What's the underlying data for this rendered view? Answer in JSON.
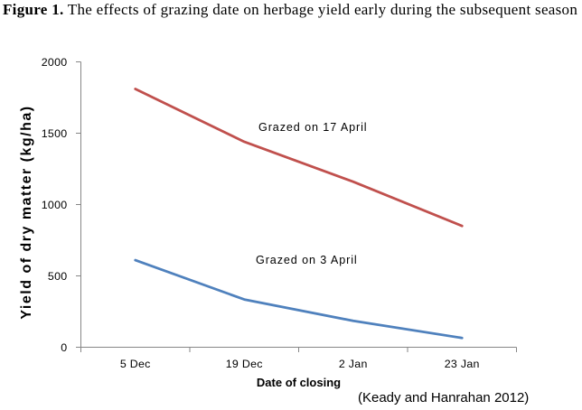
{
  "figure": {
    "label": "Figure 1.",
    "title": "The effects of grazing date on herbage yield early during the subsequent season",
    "citation": "(Keady and Hanrahan 2012)"
  },
  "chart_data": {
    "type": "line",
    "title": "The effects of grazing date on herbage yield early during the subsequent season",
    "categories": [
      "5 Dec",
      "19 Dec",
      "2 Jan",
      "23 Jan"
    ],
    "series": [
      {
        "name": "Grazed on 17 April",
        "values": [
          1810,
          1440,
          1160,
          850
        ],
        "color": "#C0504D"
      },
      {
        "name": "Grazed on 3 April",
        "values": [
          610,
          335,
          185,
          65
        ],
        "color": "#4F81BD"
      }
    ],
    "xlabel": "Date of closing",
    "ylabel": "Yield of dry matter (kg/ha)",
    "ylim": [
      0,
      2000
    ],
    "yticks": [
      0,
      500,
      1000,
      1500,
      2000
    ],
    "grid": false,
    "legend": "inline-labels",
    "axis_color": "#868686",
    "tick_label_color": "#000000"
  }
}
